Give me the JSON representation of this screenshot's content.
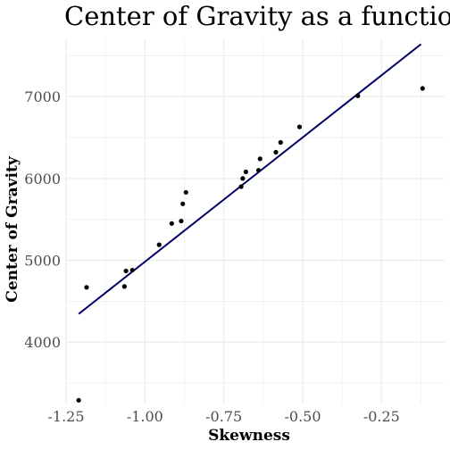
{
  "chart_data": {
    "type": "scatter",
    "title": "Center of Gravity as a function of Skewness",
    "xlabel": "Skewness",
    "ylabel": "Center of Gravity",
    "xlim": [
      -1.25,
      -0.05
    ],
    "ylim": [
      3250,
      7700
    ],
    "x_ticks": [
      -1.25,
      -1.0,
      -0.75,
      -0.5,
      -0.25
    ],
    "x_tick_labels": [
      "-1.25",
      "-1.00",
      "-0.75",
      "-0.50",
      "-0.25"
    ],
    "y_ticks": [
      4000,
      5000,
      6000,
      7000
    ],
    "y_tick_labels": [
      "4000",
      "5000",
      "6000",
      "7000"
    ],
    "grid": true,
    "colors": {
      "points": "#000000",
      "fit_line": "#000066",
      "grid": "#ebebeb"
    },
    "series": [
      {
        "type": "scatter",
        "x": [
          -1.21,
          -1.185,
          -1.065,
          -1.06,
          -1.04,
          -0.955,
          -0.915,
          -0.885,
          -0.88,
          -0.87,
          -0.695,
          -0.69,
          -0.68,
          -0.64,
          -0.635,
          -0.585,
          -0.57,
          -0.51,
          -0.325,
          -0.12
        ],
        "y": [
          3290,
          4670,
          4680,
          4870,
          4880,
          5190,
          5450,
          5480,
          5690,
          5830,
          5900,
          6000,
          6080,
          6100,
          6240,
          6320,
          6440,
          6630,
          7010,
          7100
        ]
      },
      {
        "type": "line",
        "x": [
          -1.21,
          -0.125
        ],
        "y": [
          4345,
          7640
        ]
      }
    ]
  }
}
